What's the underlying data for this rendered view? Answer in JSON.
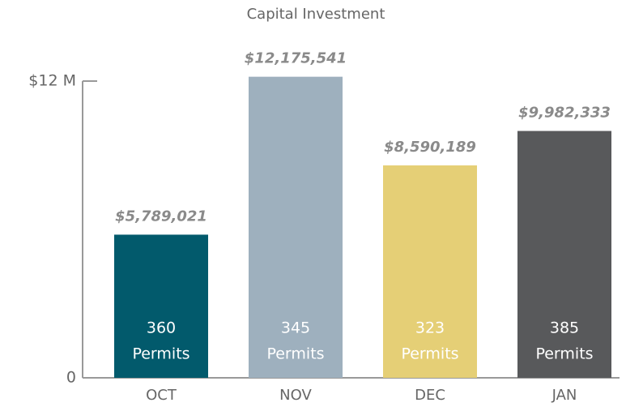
{
  "chart_data": {
    "type": "bar",
    "title": "Capital Investment",
    "categories": [
      "OCT",
      "NOV",
      "DEC",
      "JAN"
    ],
    "values": [
      5789021,
      12175541,
      8590189,
      9982333
    ],
    "value_labels": [
      "$5,789,021",
      "$12,175,541",
      "$8,590,189",
      "$9,982,333"
    ],
    "colors": [
      "#025a6c",
      "#9eb0be",
      "#e5cf76",
      "#58595b"
    ],
    "permits": [
      360,
      345,
      323,
      385
    ],
    "permits_label": "Permits",
    "ylim": [
      0,
      12000000
    ],
    "yticks": [
      0,
      {
        "value": 12000000,
        "label": "$12 M"
      }
    ],
    "grid": false
  }
}
